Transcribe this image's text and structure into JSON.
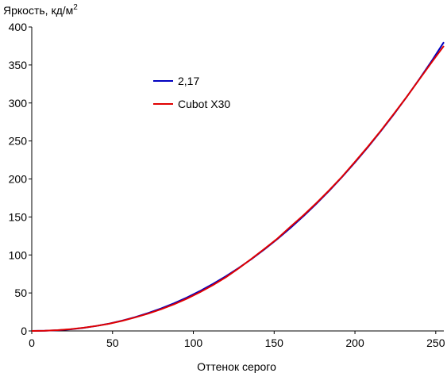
{
  "chart_data": {
    "type": "line",
    "title": "",
    "xlabel": "Оттенок серого",
    "ylabel_main": "Яркость, кд/м",
    "ylabel_sup": "2",
    "xlim": [
      0,
      255
    ],
    "ylim": [
      0,
      400
    ],
    "xticks": [
      0,
      50,
      100,
      150,
      200,
      250
    ],
    "yticks": [
      0,
      50,
      100,
      150,
      200,
      250,
      300,
      350,
      400
    ],
    "grid": false,
    "legend_position": "upper-left-center",
    "series": [
      {
        "name": "2,17",
        "color": "#0000c0",
        "gamma": 2.17,
        "x": [
          0,
          8,
          16,
          24,
          32,
          40,
          48,
          56,
          64,
          72,
          80,
          88,
          96,
          104,
          112,
          120,
          128,
          136,
          144,
          152,
          160,
          168,
          176,
          184,
          192,
          200,
          208,
          216,
          224,
          232,
          240,
          248,
          255
        ],
        "values": [
          0,
          0.2,
          0.9,
          2.1,
          4.0,
          6.6,
          9.7,
          13.6,
          18.2,
          23.5,
          29.6,
          36.4,
          44.0,
          52.4,
          61.7,
          71.8,
          82.8,
          94.6,
          107.3,
          120.9,
          135.4,
          150.8,
          167.1,
          184.3,
          202.5,
          221.7,
          241.8,
          262.9,
          284.9,
          307.9,
          331.9,
          356.9,
          380.0
        ]
      },
      {
        "name": "Cubot X30",
        "color": "#e00000",
        "x": [
          0,
          8,
          16,
          24,
          32,
          40,
          48,
          56,
          64,
          72,
          80,
          88,
          96,
          104,
          112,
          120,
          128,
          136,
          144,
          152,
          160,
          168,
          176,
          184,
          192,
          200,
          208,
          216,
          224,
          232,
          240,
          248,
          255
        ],
        "values": [
          0,
          0.3,
          1.0,
          2.3,
          4.2,
          6.6,
          9.5,
          13.3,
          17.8,
          22.8,
          28.5,
          35.0,
          42.5,
          50.9,
          60.2,
          70.5,
          82.3,
          95.0,
          108.0,
          121.5,
          137.0,
          152.0,
          168.0,
          185.0,
          203.0,
          222.5,
          242.5,
          263.5,
          285.5,
          308.0,
          331.5,
          355.0,
          375.0
        ]
      }
    ]
  }
}
